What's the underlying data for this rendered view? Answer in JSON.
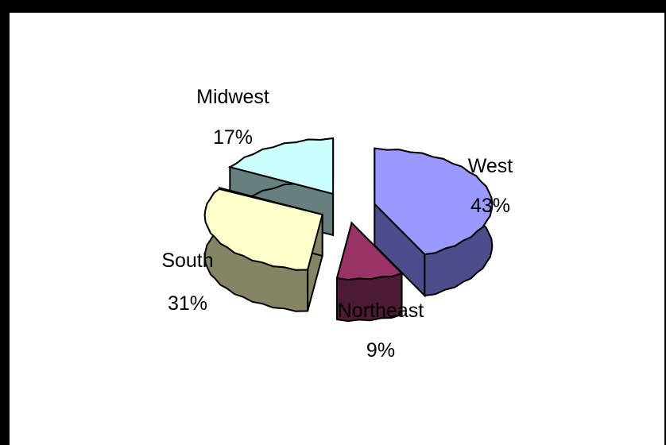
{
  "chart_data": {
    "type": "pie",
    "style": "exploded 3d pie",
    "title": "",
    "categories": [
      "West",
      "Northeast",
      "South",
      "Midwest"
    ],
    "values": [
      43,
      9,
      31,
      17
    ],
    "labels": [
      {
        "name": "West",
        "percent": "43%"
      },
      {
        "name": "Northeast",
        "percent": "9%"
      },
      {
        "name": "South",
        "percent": "31%"
      },
      {
        "name": "Midwest",
        "percent": "17%"
      }
    ],
    "colors": {
      "West": {
        "top": "#9999ff",
        "side": "#4c4c8a"
      },
      "Northeast": {
        "top": "#993366",
        "side": "#4d1a33"
      },
      "South": {
        "top": "#ffffcc",
        "side": "#858566"
      },
      "Midwest": {
        "top": "#ccffff",
        "side": "#668080"
      }
    },
    "legend": "none",
    "grid": false
  },
  "page": {
    "background": "#000000",
    "plot_background": "#ffffff"
  }
}
